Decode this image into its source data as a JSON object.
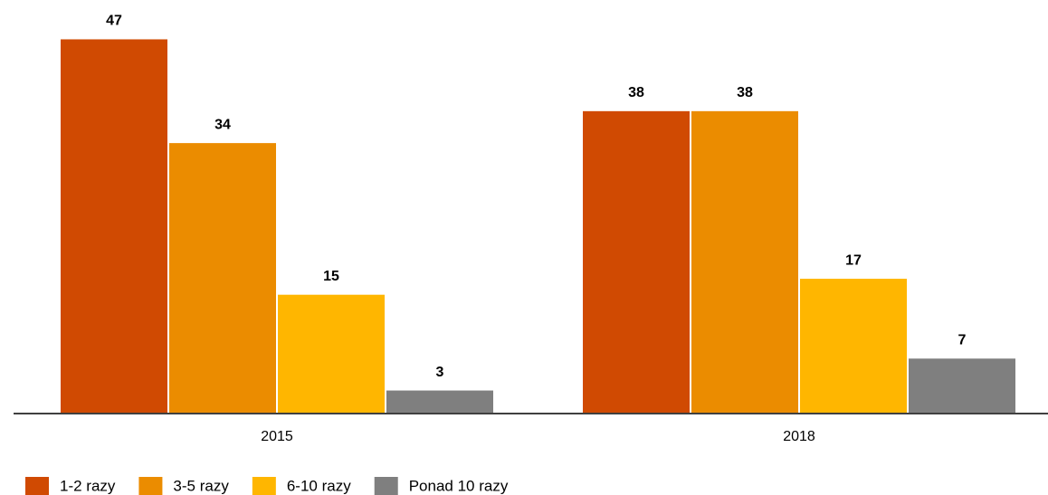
{
  "chart_data": {
    "type": "bar",
    "categories": [
      "2015",
      "2018"
    ],
    "series": [
      {
        "name": "1-2 razy",
        "color": "#d04a02",
        "values": [
          47,
          38
        ]
      },
      {
        "name": "3-5 razy",
        "color": "#eb8c00",
        "values": [
          34,
          38
        ]
      },
      {
        "name": "6-10 razy",
        "color": "#ffb600",
        "values": [
          15,
          17
        ]
      },
      {
        "name": "Ponad 10 razy",
        "color": "#7f7f7f",
        "values": [
          3,
          7
        ]
      }
    ],
    "ylim": [
      0,
      50
    ],
    "legend": "bottom-left"
  }
}
